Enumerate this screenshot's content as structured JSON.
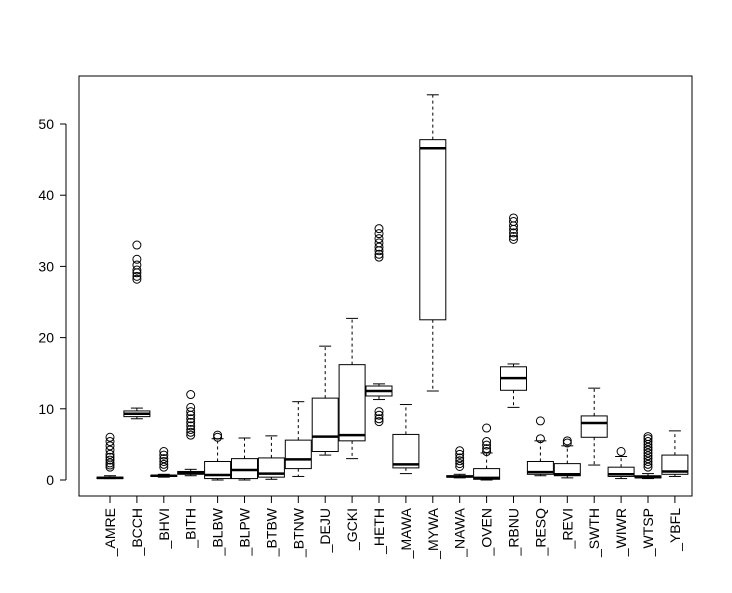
{
  "chart_data": {
    "type": "boxplot",
    "title": "",
    "xlabel": "",
    "ylabel": "",
    "ylim": [
      -2,
      57
    ],
    "yticks": [
      "0",
      "10",
      "20",
      "30",
      "40",
      "50"
    ],
    "categories": [
      "_AMRE",
      "_BCCH",
      "_BHVI",
      "_BITH",
      "_BLBW",
      "_BLPW",
      "_BTBW",
      "_BTNW",
      "_DEJU",
      "_GCKI",
      "_HETH",
      "_MAWA",
      "_MYWA",
      "_NAWA",
      "_OVEN",
      "_RBNU",
      "_RESQ",
      "_REVI",
      "_SWTH",
      "_WIWR",
      "_WTSP",
      "_YBFL"
    ],
    "boxes": [
      {
        "label": "_AMRE",
        "whisker_low": 0.2,
        "q1": 0.2,
        "median": 0.3,
        "q3": 0.4,
        "whisker_high": 0.6,
        "outliers": [
          1.8,
          2.1,
          2.4,
          2.8,
          3.2,
          3.6,
          4.2,
          4.8,
          5.4,
          6.0
        ]
      },
      {
        "label": "_BCCH",
        "whisker_low": 8.6,
        "q1": 8.9,
        "median": 9.3,
        "q3": 9.7,
        "whisker_high": 10.1,
        "outliers": [
          28.2,
          28.6,
          29.1,
          29.5,
          30.2,
          31.0,
          33.0
        ]
      },
      {
        "label": "_BHVI",
        "whisker_low": 0.4,
        "q1": 0.5,
        "median": 0.6,
        "q3": 0.65,
        "whisker_high": 0.8,
        "outliers": [
          1.8,
          2.2,
          2.6,
          3.0,
          3.5,
          4.0
        ]
      },
      {
        "label": "_BITH",
        "whisker_low": 0.6,
        "q1": 0.8,
        "median": 1.0,
        "q3": 1.2,
        "whisker_high": 1.5,
        "outliers": [
          6.3,
          6.7,
          7.1,
          7.6,
          8.1,
          8.6,
          9.1,
          9.6,
          10.2,
          12.0
        ]
      },
      {
        "label": "_BLBW",
        "whisker_low": 0.0,
        "q1": 0.2,
        "median": 0.7,
        "q3": 2.6,
        "whisker_high": 5.8,
        "outliers": [
          6.0,
          6.3
        ]
      },
      {
        "label": "_BLPW",
        "whisker_low": 0.0,
        "q1": 0.2,
        "median": 1.4,
        "q3": 3.0,
        "whisker_high": 5.9,
        "outliers": []
      },
      {
        "label": "_BTBW",
        "whisker_low": 0.1,
        "q1": 0.4,
        "median": 0.9,
        "q3": 3.1,
        "whisker_high": 6.2,
        "outliers": []
      },
      {
        "label": "_BTNW",
        "whisker_low": 0.5,
        "q1": 1.6,
        "median": 2.9,
        "q3": 5.6,
        "whisker_high": 11.0,
        "outliers": []
      },
      {
        "label": "_DEJU",
        "whisker_low": 3.5,
        "q1": 4.0,
        "median": 6.1,
        "q3": 11.5,
        "whisker_high": 18.8,
        "outliers": []
      },
      {
        "label": "_GCKI",
        "whisker_low": 3.0,
        "q1": 5.5,
        "median": 6.3,
        "q3": 16.2,
        "whisker_high": 22.7,
        "outliers": []
      },
      {
        "label": "_HETH",
        "whisker_low": 11.3,
        "q1": 11.8,
        "median": 12.5,
        "q3": 13.2,
        "whisker_high": 13.5,
        "outliers": [
          8.2,
          8.6,
          9.1,
          9.6,
          31.3,
          31.7,
          32.2,
          32.7,
          33.3,
          33.9,
          34.6,
          35.3
        ]
      },
      {
        "label": "_MAWA",
        "whisker_low": 0.9,
        "q1": 1.7,
        "median": 2.2,
        "q3": 6.4,
        "whisker_high": 10.6,
        "outliers": []
      },
      {
        "label": "_MYWA",
        "whisker_low": 12.5,
        "q1": 22.5,
        "median": 46.6,
        "q3": 47.8,
        "whisker_high": 54.1,
        "outliers": []
      },
      {
        "label": "_NAWA",
        "whisker_low": 0.3,
        "q1": 0.4,
        "median": 0.5,
        "q3": 0.6,
        "whisker_high": 0.8,
        "outliers": [
          1.9,
          2.3,
          2.7,
          3.1,
          3.6,
          4.1
        ]
      },
      {
        "label": "_OVEN",
        "whisker_low": 0.0,
        "q1": 0.1,
        "median": 0.3,
        "q3": 1.6,
        "whisker_high": 3.8,
        "outliers": [
          4.0,
          4.4,
          4.9,
          5.4,
          7.3
        ]
      },
      {
        "label": "_RBNU",
        "whisker_low": 10.2,
        "q1": 12.6,
        "median": 14.3,
        "q3": 15.9,
        "whisker_high": 16.3,
        "outliers": [
          33.8,
          34.2,
          34.7,
          35.2,
          35.7,
          36.3,
          36.8
        ]
      },
      {
        "label": "_RESQ",
        "whisker_low": 0.6,
        "q1": 0.8,
        "median": 1.1,
        "q3": 2.6,
        "whisker_high": 5.5,
        "outliers": [
          5.8,
          8.3
        ]
      },
      {
        "label": "_REVI",
        "whisker_low": 0.3,
        "q1": 0.6,
        "median": 0.8,
        "q3": 2.3,
        "whisker_high": 4.8,
        "outliers": [
          5.2,
          5.5
        ]
      },
      {
        "label": "_SWTH",
        "whisker_low": 2.1,
        "q1": 6.0,
        "median": 8.0,
        "q3": 9.0,
        "whisker_high": 12.9,
        "outliers": []
      },
      {
        "label": "_WIWR",
        "whisker_low": 0.2,
        "q1": 0.5,
        "median": 0.8,
        "q3": 1.8,
        "whisker_high": 3.3,
        "outliers": [
          4.0
        ]
      },
      {
        "label": "_WTSP",
        "whisker_low": 0.2,
        "q1": 0.3,
        "median": 0.4,
        "q3": 0.6,
        "whisker_high": 0.9,
        "outliers": [
          1.8,
          2.2,
          2.6,
          3.0,
          3.4,
          3.8,
          4.2,
          4.6,
          5.0,
          5.4,
          5.8,
          6.1
        ]
      },
      {
        "label": "_YBFL",
        "whisker_low": 0.5,
        "q1": 0.8,
        "median": 1.2,
        "q3": 3.5,
        "whisker_high": 6.9,
        "outliers": []
      }
    ]
  }
}
